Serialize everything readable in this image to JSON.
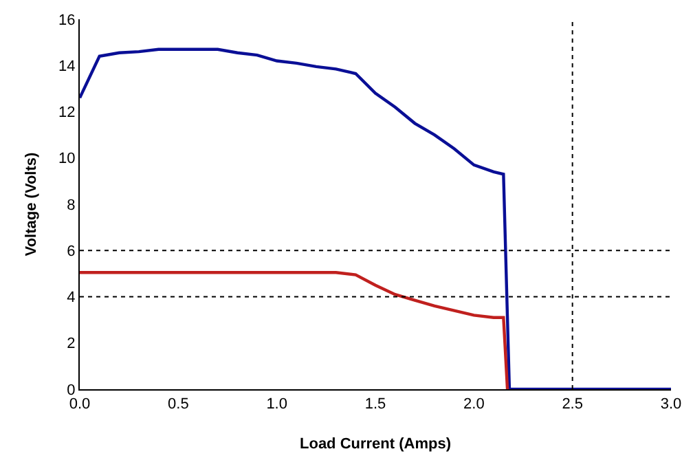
{
  "chart_data": {
    "type": "line",
    "xlabel": "Load Current (Amps)",
    "ylabel": "Voltage (Volts)",
    "xlim": [
      0,
      3
    ],
    "xticks": [
      {
        "value": 0,
        "label": "0.0"
      },
      {
        "value": 0.5,
        "label": "0.5"
      },
      {
        "value": 1,
        "label": "1.0"
      },
      {
        "value": 1.5,
        "label": "1.5"
      },
      {
        "value": 2,
        "label": "2.0"
      },
      {
        "value": 2.5,
        "label": "2.5"
      },
      {
        "value": 3,
        "label": "3.0"
      }
    ],
    "ylim": [
      0,
      16
    ],
    "yticks": [
      0,
      2,
      4,
      6,
      8,
      10,
      12,
      14,
      16
    ],
    "grid": false,
    "marker": "none",
    "line_style": "solid",
    "series": [
      {
        "color": "#0a0f96",
        "x": [
          0,
          0.1,
          0.2,
          0.3,
          0.4,
          0.7,
          0.8,
          0.9,
          1.0,
          1.1,
          1.2,
          1.3,
          1.4,
          1.5,
          1.6,
          1.7,
          1.8,
          1.9,
          2.0,
          2.1,
          2.15,
          2.18,
          3.0
        ],
        "values": [
          12.6,
          14.4,
          14.55,
          14.6,
          14.7,
          14.7,
          14.55,
          14.45,
          14.2,
          14.1,
          13.95,
          13.85,
          13.65,
          12.8,
          12.2,
          11.5,
          11.0,
          10.4,
          9.7,
          9.4,
          9.3,
          0,
          0
        ]
      },
      {
        "color": "#c0201e",
        "x": [
          0,
          1.3,
          1.4,
          1.5,
          1.6,
          1.7,
          1.8,
          1.9,
          2.0,
          2.1,
          2.15,
          2.17
        ],
        "values": [
          5.05,
          5.05,
          4.95,
          4.5,
          4.1,
          3.85,
          3.6,
          3.4,
          3.2,
          3.1,
          3.1,
          0
        ]
      }
    ],
    "ref_lines": [
      {
        "axis": "y",
        "value": 6,
        "color": "#000000",
        "line_style": "dotted"
      },
      {
        "axis": "y",
        "value": 4,
        "color": "#000000",
        "line_style": "dotted"
      },
      {
        "axis": "x",
        "value": 2.5,
        "color": "#000000",
        "line_style": "dotted"
      }
    ]
  }
}
